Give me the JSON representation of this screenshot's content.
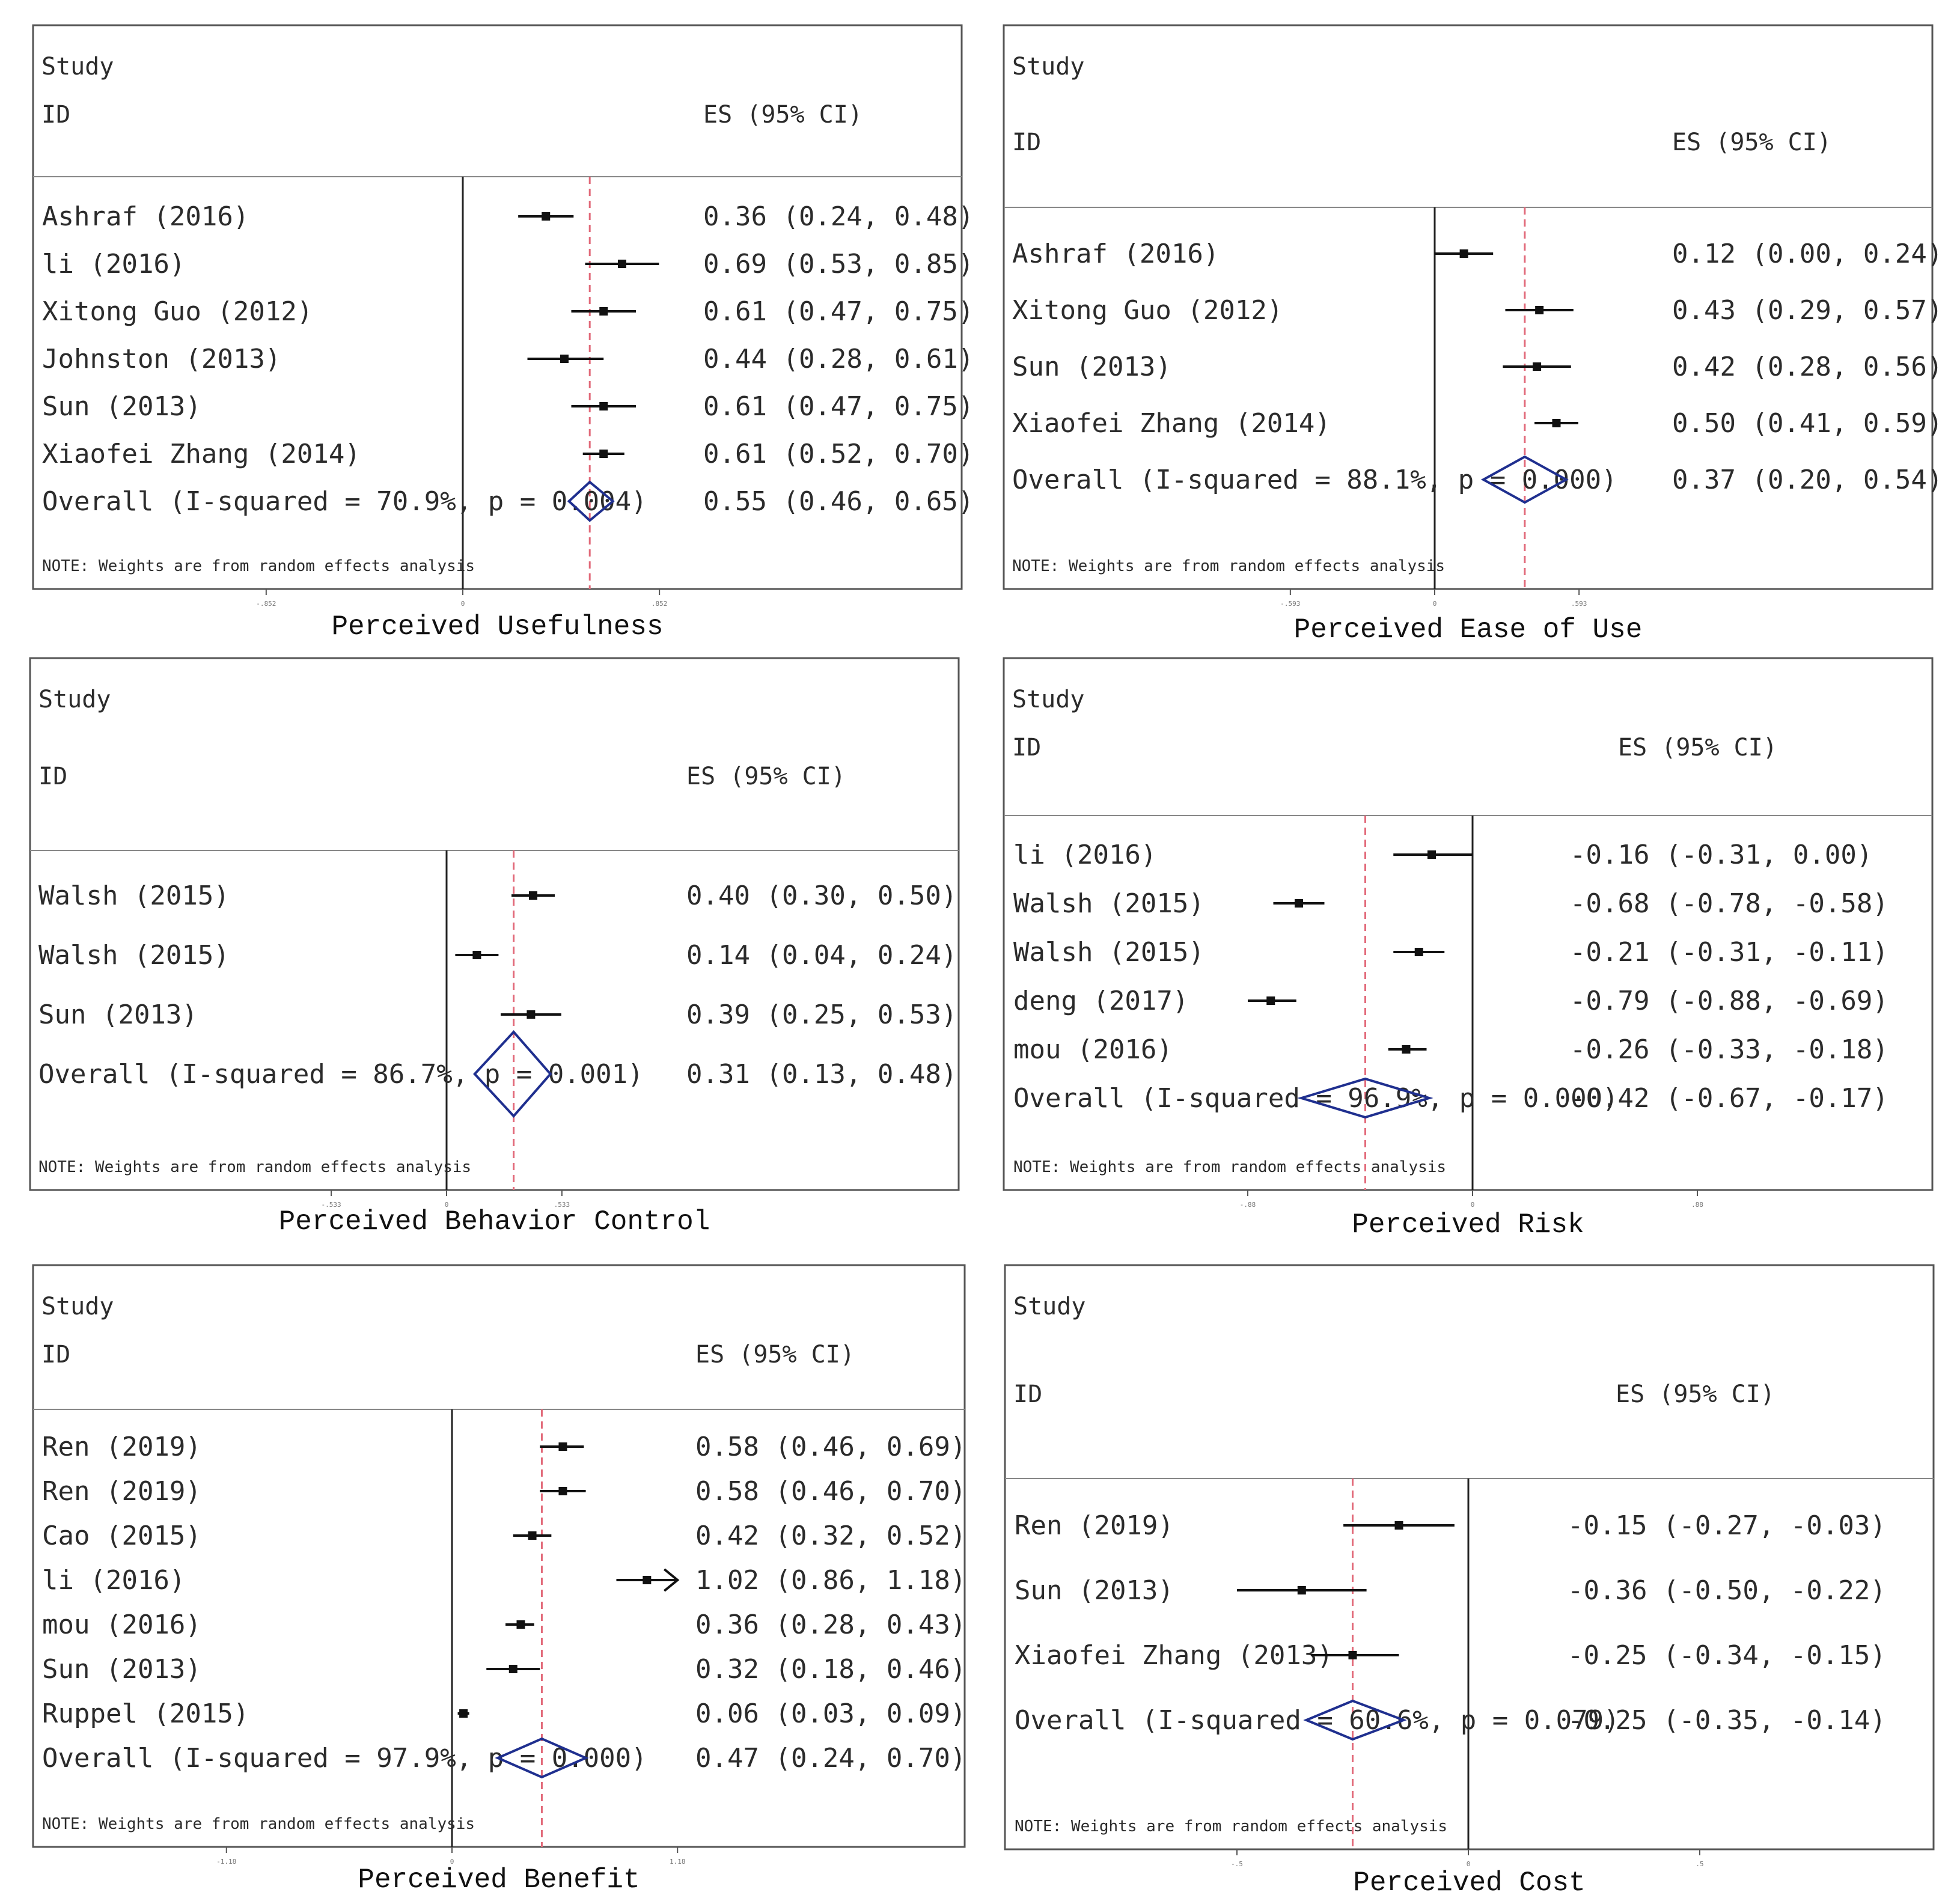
{
  "chart_data": [
    {
      "type": "forest",
      "title": "Perceived Usefulness",
      "header_study": "Study",
      "header_id": "ID",
      "header_es": "ES (95% CI)",
      "note": "NOTE: Weights are from random effects analysis",
      "null_value": 0,
      "overall_es": 0.55,
      "xlim": [
        -0.852,
        0.852
      ],
      "tick_labels": [
        "-.852",
        "0",
        ".852"
      ],
      "studies": [
        {
          "label": "Ashraf (2016)",
          "es": 0.36,
          "lo": 0.24,
          "hi": 0.48,
          "es_text": "0.36 (0.24, 0.48)"
        },
        {
          "label": "li (2016)",
          "es": 0.69,
          "lo": 0.53,
          "hi": 0.85,
          "es_text": "0.69 (0.53, 0.85)"
        },
        {
          "label": "Xitong Guo (2012)",
          "es": 0.61,
          "lo": 0.47,
          "hi": 0.75,
          "es_text": "0.61 (0.47, 0.75)"
        },
        {
          "label": "Johnston (2013)",
          "es": 0.44,
          "lo": 0.28,
          "hi": 0.61,
          "es_text": "0.44 (0.28, 0.61)"
        },
        {
          "label": "Sun (2013)",
          "es": 0.61,
          "lo": 0.47,
          "hi": 0.75,
          "es_text": "0.61 (0.47, 0.75)"
        },
        {
          "label": "Xiaofei Zhang (2014)",
          "es": 0.61,
          "lo": 0.52,
          "hi": 0.7,
          "es_text": "0.61 (0.52, 0.70)"
        }
      ],
      "overall": {
        "label": "Overall (I-squared = 70.9%, p = 0.004)",
        "es": 0.55,
        "lo": 0.46,
        "hi": 0.65,
        "es_text": "0.55 (0.46, 0.65)"
      }
    },
    {
      "type": "forest",
      "title": "Perceived Ease of Use",
      "header_study": "Study",
      "header_id": "ID",
      "header_es": "ES (95% CI)",
      "note": "NOTE: Weights are from random effects analysis",
      "null_value": 0,
      "overall_es": 0.37,
      "xlim": [
        -0.593,
        0.593
      ],
      "tick_labels": [
        "-.593",
        "0",
        ".593"
      ],
      "studies": [
        {
          "label": "Ashraf (2016)",
          "es": 0.12,
          "lo": 0.0,
          "hi": 0.24,
          "es_text": "0.12 (0.00, 0.24)"
        },
        {
          "label": "Xitong Guo (2012)",
          "es": 0.43,
          "lo": 0.29,
          "hi": 0.57,
          "es_text": "0.43 (0.29, 0.57)"
        },
        {
          "label": "Sun (2013)",
          "es": 0.42,
          "lo": 0.28,
          "hi": 0.56,
          "es_text": "0.42 (0.28, 0.56)"
        },
        {
          "label": "Xiaofei Zhang (2014)",
          "es": 0.5,
          "lo": 0.41,
          "hi": 0.59,
          "es_text": "0.50 (0.41, 0.59)"
        }
      ],
      "overall": {
        "label": "Overall (I-squared = 88.1%, p = 0.000)",
        "es": 0.37,
        "lo": 0.2,
        "hi": 0.54,
        "es_text": "0.37 (0.20, 0.54)"
      }
    },
    {
      "type": "forest",
      "title": "Perceived Behavior Control",
      "header_study": "Study",
      "header_id": "ID",
      "header_es": "ES (95% CI)",
      "note": "NOTE: Weights are from random effects analysis",
      "null_value": 0,
      "overall_es": 0.31,
      "xlim": [
        -0.533,
        0.533
      ],
      "tick_labels": [
        "-.533",
        "0",
        ".533"
      ],
      "studies": [
        {
          "label": "Walsh (2015)",
          "es": 0.4,
          "lo": 0.3,
          "hi": 0.5,
          "es_text": "0.40 (0.30, 0.50)"
        },
        {
          "label": "Walsh (2015)",
          "es": 0.14,
          "lo": 0.04,
          "hi": 0.24,
          "es_text": "0.14 (0.04, 0.24)"
        },
        {
          "label": "Sun (2013)",
          "es": 0.39,
          "lo": 0.25,
          "hi": 0.53,
          "es_text": "0.39 (0.25, 0.53)"
        }
      ],
      "overall": {
        "label": "Overall (I-squared = 86.7%, p = 0.001)",
        "es": 0.31,
        "lo": 0.13,
        "hi": 0.48,
        "es_text": "0.31 (0.13, 0.48)"
      }
    },
    {
      "type": "forest",
      "title": "Perceived Risk",
      "header_study": "Study",
      "header_id": "ID",
      "header_es": "ES (95% CI)",
      "note": "NOTE: Weights are from random effects analysis",
      "null_value": 0,
      "overall_es": -0.42,
      "xlim": [
        -0.88,
        0.88
      ],
      "tick_labels": [
        "-.88",
        "0",
        ".88"
      ],
      "studies": [
        {
          "label": "li (2016)",
          "es": -0.16,
          "lo": -0.31,
          "hi": 0.0,
          "es_text": "-0.16 (-0.31, 0.00)"
        },
        {
          "label": "Walsh (2015)",
          "es": -0.68,
          "lo": -0.78,
          "hi": -0.58,
          "es_text": "-0.68 (-0.78, -0.58)"
        },
        {
          "label": "Walsh (2015)",
          "es": -0.21,
          "lo": -0.31,
          "hi": -0.11,
          "es_text": "-0.21 (-0.31, -0.11)"
        },
        {
          "label": "deng (2017)",
          "es": -0.79,
          "lo": -0.88,
          "hi": -0.69,
          "es_text": "-0.79 (-0.88, -0.69)"
        },
        {
          "label": "mou (2016)",
          "es": -0.26,
          "lo": -0.33,
          "hi": -0.18,
          "es_text": "-0.26 (-0.33, -0.18)"
        }
      ],
      "overall": {
        "label": "Overall (I-squared = 96.9%, p = 0.000)",
        "es": -0.42,
        "lo": -0.67,
        "hi": -0.17,
        "es_text": "-0.42 (-0.67, -0.17)"
      }
    },
    {
      "type": "forest",
      "title": "Perceived Benefit",
      "header_study": "Study",
      "header_id": "ID",
      "header_es": "ES (95% CI)",
      "note": "NOTE: Weights are from random effects analysis",
      "null_value": 0,
      "overall_es": 0.47,
      "xlim": [
        -1.18,
        1.18
      ],
      "tick_labels": [
        "-1.18",
        "0",
        "1.18"
      ],
      "studies": [
        {
          "label": "Ren (2019)",
          "es": 0.58,
          "lo": 0.46,
          "hi": 0.69,
          "es_text": "0.58 (0.46, 0.69)"
        },
        {
          "label": "Ren (2019)",
          "es": 0.58,
          "lo": 0.46,
          "hi": 0.7,
          "es_text": "0.58 (0.46, 0.70)"
        },
        {
          "label": "Cao (2015)",
          "es": 0.42,
          "lo": 0.32,
          "hi": 0.52,
          "es_text": "0.42 (0.32, 0.52)"
        },
        {
          "label": "li (2016)",
          "es": 1.02,
          "lo": 0.86,
          "hi": 1.18,
          "es_text": "1.02 (0.86, 1.18)",
          "arrow": true
        },
        {
          "label": "mou (2016)",
          "es": 0.36,
          "lo": 0.28,
          "hi": 0.43,
          "es_text": "0.36 (0.28, 0.43)"
        },
        {
          "label": "Sun (2013)",
          "es": 0.32,
          "lo": 0.18,
          "hi": 0.46,
          "es_text": "0.32 (0.18, 0.46)"
        },
        {
          "label": "Ruppel (2015)",
          "es": 0.06,
          "lo": 0.03,
          "hi": 0.09,
          "es_text": "0.06 (0.03, 0.09)"
        }
      ],
      "overall": {
        "label": "Overall (I-squared = 97.9%, p = 0.000)",
        "es": 0.47,
        "lo": 0.24,
        "hi": 0.7,
        "es_text": "0.47 (0.24, 0.70)"
      }
    },
    {
      "type": "forest",
      "title": "Perceived Cost",
      "header_study": "Study",
      "header_id": "ID",
      "header_es": "ES (95% CI)",
      "note": "NOTE: Weights are from random effects analysis",
      "null_value": 0,
      "overall_es": -0.25,
      "xlim": [
        -0.5,
        0.5
      ],
      "tick_labels": [
        "-.5",
        "0",
        ".5"
      ],
      "studies": [
        {
          "label": "Ren (2019)",
          "es": -0.15,
          "lo": -0.27,
          "hi": -0.03,
          "es_text": "-0.15 (-0.27, -0.03)"
        },
        {
          "label": "Sun (2013)",
          "es": -0.36,
          "lo": -0.5,
          "hi": -0.22,
          "es_text": "-0.36 (-0.50, -0.22)"
        },
        {
          "label": "Xiaofei Zhang (2013)",
          "es": -0.25,
          "lo": -0.34,
          "hi": -0.15,
          "es_text": "-0.25 (-0.34, -0.15)"
        }
      ],
      "overall": {
        "label": "Overall (I-squared = 60.6%, p = 0.079)",
        "es": -0.25,
        "lo": -0.35,
        "hi": -0.14,
        "es_text": "-0.25 (-0.35, -0.14)"
      }
    }
  ]
}
